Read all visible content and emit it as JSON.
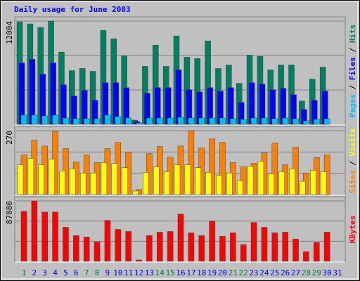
{
  "chart_data": [
    {
      "type": "bar",
      "title": "Daily usage for June 2003",
      "title_color": "#0000ff",
      "legend_separator": " / ",
      "ylim": [
        0,
        12004
      ],
      "yticks": [
        12004
      ],
      "series": [
        {
          "name": "Pages",
          "color": "#00c0ff",
          "values": [
            1069,
            1069,
            986,
            1069,
            740,
            658,
            658,
            658,
            1069,
            904,
            740,
            164,
            740,
            740,
            740,
            822,
            740,
            740,
            740,
            740,
            658,
            575,
            740,
            740,
            658,
            740,
            658,
            411,
            575,
            658,
            null
          ]
        },
        {
          "name": "Files",
          "color": "#0000ff",
          "values": [
            7151,
            7562,
            5836,
            7151,
            4603,
            3288,
            3946,
            2795,
            4850,
            4850,
            4274,
            329,
            3617,
            4274,
            4274,
            6329,
            4028,
            3781,
            4274,
            3863,
            4274,
            2548,
            4850,
            4685,
            4028,
            4192,
            3452,
            1726,
            2795,
            3863,
            null
          ]
        },
        {
          "name": "Hits",
          "color": "#008060",
          "values": [
            11920,
            11675,
            11265,
            12004,
            8386,
            6249,
            6495,
            6166,
            10935,
            9949,
            7975,
            493,
            6742,
            9208,
            6742,
            10277,
            7811,
            7646,
            9702,
            6495,
            6906,
            4769,
            8057,
            7893,
            6331,
            6906,
            6906,
            2713,
            5262,
            6660,
            null
          ]
        }
      ]
    },
    {
      "type": "bar",
      "legend_separator": " / ",
      "ylim": [
        0,
        270
      ],
      "yticks": [
        270
      ],
      "series": [
        {
          "name": "Sites",
          "color": "#ff8000",
          "values": [
            167,
            229,
            205,
            267,
            194,
            138,
            167,
            135,
            194,
            220,
            179,
            21,
            173,
            203,
            158,
            205,
            270,
            197,
            235,
            220,
            135,
            117,
            132,
            176,
            217,
            126,
            200,
            91,
            156,
            167,
            null
          ]
        },
        {
          "name": "Visits",
          "color": "#ffff00",
          "values": [
            126,
            153,
            126,
            150,
            100,
            109,
            91,
            91,
            135,
            132,
            114,
            15,
            94,
            117,
            97,
            126,
            126,
            114,
            94,
            82,
            91,
            59,
            120,
            141,
            88,
            97,
            109,
            56,
            103,
            97,
            null
          ]
        }
      ]
    },
    {
      "type": "bar",
      "ylim": [
        0,
        87080
      ],
      "yticks": [
        87080
      ],
      "categories": [
        1,
        2,
        3,
        4,
        5,
        6,
        7,
        8,
        9,
        10,
        11,
        12,
        13,
        14,
        15,
        16,
        17,
        18,
        19,
        20,
        21,
        22,
        23,
        24,
        25,
        26,
        27,
        28,
        29,
        30,
        31
      ],
      "label_colors": [
        "#008040",
        "#0000ff",
        "#0000ff",
        "#0000ff",
        "#0000ff",
        "#0000ff",
        "#008040",
        "#008040",
        "#0000ff",
        "#0000ff",
        "#0000ff",
        "#0000ff",
        "#0000ff",
        "#008040",
        "#008040",
        "#0000ff",
        "#0000ff",
        "#0000ff",
        "#0000ff",
        "#0000ff",
        "#008040",
        "#008040",
        "#0000ff",
        "#0000ff",
        "#0000ff",
        "#0000ff",
        "#0000ff",
        "#008040",
        "#008040",
        "#0000ff",
        "#0000ff"
      ],
      "series": [
        {
          "name": "KBytes",
          "color": "#ff0000",
          "values": [
            72072,
            87080,
            71071,
            71071,
            49049,
            37037,
            35035,
            28028,
            59059,
            46046,
            43043,
            2002,
            37037,
            42042,
            43043,
            68068,
            41041,
            37037,
            58058,
            36036,
            41041,
            24024,
            56056,
            49049,
            41041,
            42042,
            32032,
            14014,
            27027,
            42042,
            null
          ]
        }
      ]
    }
  ]
}
